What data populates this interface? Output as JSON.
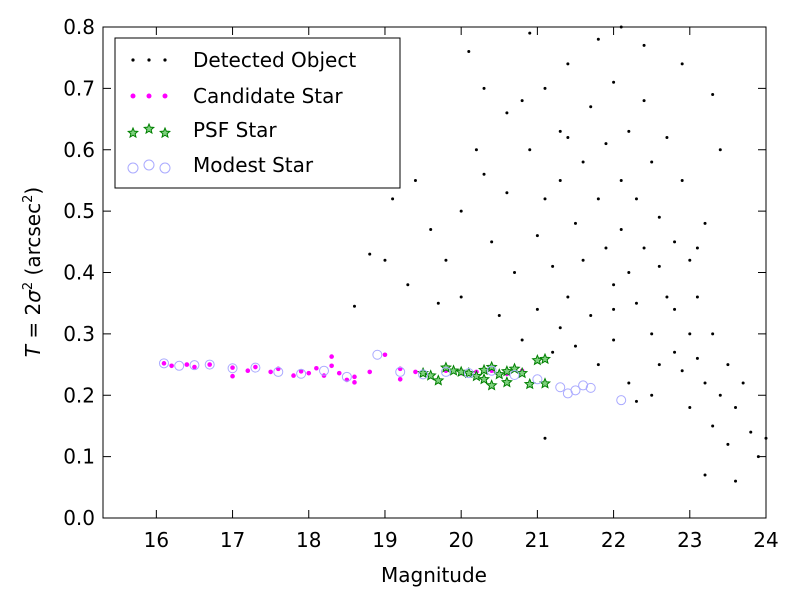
{
  "chart_data": {
    "type": "scatter",
    "xlabel": "Magnitude",
    "ylabel_parts": {
      "T": "T",
      "equals": " = 2",
      "sigma": "σ",
      "sup2": "2",
      "units": " (arcsec",
      "units_sup": "2",
      "close": ")"
    },
    "xlim": [
      15.3,
      24.0
    ],
    "ylim": [
      0.0,
      0.8
    ],
    "xticks": [
      16,
      17,
      18,
      19,
      20,
      21,
      22,
      23,
      24
    ],
    "yticks": [
      0.0,
      0.1,
      0.2,
      0.3,
      0.4,
      0.5,
      0.6,
      0.7,
      0.8
    ],
    "ytick_labels": [
      "0.0",
      "0.1",
      "0.2",
      "0.3",
      "0.4",
      "0.5",
      "0.6",
      "0.7",
      "0.8"
    ],
    "grid": false,
    "legend_position": "top-left",
    "series": [
      {
        "name": "Detected Object",
        "marker": "dot",
        "color": "#000000",
        "points": [
          [
            18.6,
            0.345
          ],
          [
            18.8,
            0.43
          ],
          [
            19.0,
            0.42
          ],
          [
            19.3,
            0.38
          ],
          [
            19.1,
            0.52
          ],
          [
            19.4,
            0.55
          ],
          [
            19.6,
            0.47
          ],
          [
            19.8,
            0.42
          ],
          [
            20.0,
            0.36
          ],
          [
            20.0,
            0.5
          ],
          [
            20.2,
            0.6
          ],
          [
            20.1,
            0.76
          ],
          [
            20.3,
            0.7
          ],
          [
            20.4,
            0.45
          ],
          [
            20.5,
            0.33
          ],
          [
            20.6,
            0.66
          ],
          [
            20.6,
            0.53
          ],
          [
            20.7,
            0.4
          ],
          [
            20.8,
            0.29
          ],
          [
            20.9,
            0.79
          ],
          [
            20.9,
            0.6
          ],
          [
            21.0,
            0.46
          ],
          [
            21.0,
            0.34
          ],
          [
            21.1,
            0.7
          ],
          [
            21.1,
            0.52
          ],
          [
            21.2,
            0.27
          ],
          [
            21.2,
            0.41
          ],
          [
            21.3,
            0.63
          ],
          [
            21.3,
            0.55
          ],
          [
            21.4,
            0.36
          ],
          [
            21.4,
            0.74
          ],
          [
            21.5,
            0.48
          ],
          [
            21.5,
            0.28
          ],
          [
            21.6,
            0.58
          ],
          [
            21.6,
            0.42
          ],
          [
            21.7,
            0.67
          ],
          [
            21.7,
            0.33
          ],
          [
            21.8,
            0.52
          ],
          [
            21.8,
            0.25
          ],
          [
            21.9,
            0.61
          ],
          [
            21.9,
            0.44
          ],
          [
            22.0,
            0.38
          ],
          [
            22.0,
            0.71
          ],
          [
            22.0,
            0.29
          ],
          [
            22.1,
            0.55
          ],
          [
            22.1,
            0.47
          ],
          [
            22.2,
            0.4
          ],
          [
            22.2,
            0.63
          ],
          [
            22.2,
            0.22
          ],
          [
            22.3,
            0.35
          ],
          [
            22.3,
            0.52
          ],
          [
            22.4,
            0.44
          ],
          [
            22.4,
            0.68
          ],
          [
            22.5,
            0.3
          ],
          [
            22.5,
            0.58
          ],
          [
            22.5,
            0.2
          ],
          [
            22.6,
            0.41
          ],
          [
            22.6,
            0.49
          ],
          [
            22.7,
            0.36
          ],
          [
            22.7,
            0.62
          ],
          [
            22.8,
            0.27
          ],
          [
            22.8,
            0.34
          ],
          [
            22.8,
            0.45
          ],
          [
            22.9,
            0.24
          ],
          [
            22.9,
            0.55
          ],
          [
            23.0,
            0.3
          ],
          [
            23.0,
            0.18
          ],
          [
            23.0,
            0.42
          ],
          [
            23.1,
            0.26
          ],
          [
            23.1,
            0.36
          ],
          [
            23.2,
            0.22
          ],
          [
            23.2,
            0.07
          ],
          [
            23.2,
            0.48
          ],
          [
            23.3,
            0.15
          ],
          [
            23.3,
            0.3
          ],
          [
            23.4,
            0.2
          ],
          [
            23.4,
            0.6
          ],
          [
            23.5,
            0.25
          ],
          [
            23.5,
            0.12
          ],
          [
            23.6,
            0.18
          ],
          [
            23.6,
            0.06
          ],
          [
            23.7,
            0.22
          ],
          [
            23.8,
            0.14
          ],
          [
            23.9,
            0.1
          ],
          [
            24.0,
            0.13
          ],
          [
            22.1,
            0.8
          ],
          [
            21.8,
            0.78
          ],
          [
            22.4,
            0.77
          ],
          [
            22.9,
            0.74
          ],
          [
            23.3,
            0.69
          ],
          [
            21.4,
            0.62
          ],
          [
            20.8,
            0.68
          ],
          [
            20.3,
            0.56
          ],
          [
            19.7,
            0.35
          ],
          [
            21.3,
            0.31
          ],
          [
            22.0,
            0.34
          ],
          [
            22.6,
            0.25
          ],
          [
            23.1,
            0.44
          ],
          [
            22.3,
            0.19
          ],
          [
            21.1,
            0.13
          ]
        ]
      },
      {
        "name": "Candidate Star",
        "marker": "circle",
        "color": "#ff00ff",
        "points": [
          [
            16.1,
            0.252
          ],
          [
            16.2,
            0.248
          ],
          [
            16.4,
            0.25
          ],
          [
            16.5,
            0.246
          ],
          [
            16.7,
            0.25
          ],
          [
            17.0,
            0.245
          ],
          [
            17.0,
            0.231
          ],
          [
            17.2,
            0.24
          ],
          [
            17.3,
            0.246
          ],
          [
            17.5,
            0.238
          ],
          [
            17.6,
            0.243
          ],
          [
            17.8,
            0.232
          ],
          [
            17.9,
            0.239
          ],
          [
            18.0,
            0.236
          ],
          [
            18.1,
            0.244
          ],
          [
            18.2,
            0.232
          ],
          [
            18.3,
            0.248
          ],
          [
            18.3,
            0.263
          ],
          [
            18.4,
            0.236
          ],
          [
            18.5,
            0.225
          ],
          [
            18.6,
            0.221
          ],
          [
            18.6,
            0.23
          ],
          [
            18.8,
            0.238
          ],
          [
            19.0,
            0.266
          ],
          [
            19.2,
            0.243
          ],
          [
            19.2,
            0.226
          ],
          [
            19.4,
            0.238
          ],
          [
            19.6,
            0.232
          ],
          [
            19.8,
            0.24
          ],
          [
            20.0,
            0.236
          ],
          [
            20.2,
            0.238
          ],
          [
            20.4,
            0.24
          ],
          [
            20.6,
            0.235
          ],
          [
            20.8,
            0.24
          ]
        ]
      },
      {
        "name": "PSF Star",
        "marker": "star",
        "color": "#008000",
        "points": [
          [
            19.5,
            0.236
          ],
          [
            19.6,
            0.232
          ],
          [
            19.7,
            0.224
          ],
          [
            19.8,
            0.245
          ],
          [
            19.9,
            0.24
          ],
          [
            20.0,
            0.238
          ],
          [
            20.1,
            0.236
          ],
          [
            20.2,
            0.231
          ],
          [
            20.3,
            0.241
          ],
          [
            20.3,
            0.226
          ],
          [
            20.4,
            0.246
          ],
          [
            20.4,
            0.216
          ],
          [
            20.5,
            0.234
          ],
          [
            20.6,
            0.239
          ],
          [
            20.6,
            0.221
          ],
          [
            20.7,
            0.243
          ],
          [
            20.8,
            0.236
          ],
          [
            20.9,
            0.218
          ],
          [
            21.0,
            0.257
          ],
          [
            21.1,
            0.259
          ],
          [
            21.1,
            0.219
          ]
        ]
      },
      {
        "name": "Modest Star",
        "marker": "open-circle",
        "color": "#aaaaff",
        "points": [
          [
            16.1,
            0.252
          ],
          [
            16.3,
            0.248
          ],
          [
            16.5,
            0.249
          ],
          [
            16.7,
            0.25
          ],
          [
            17.0,
            0.244
          ],
          [
            17.3,
            0.245
          ],
          [
            17.6,
            0.238
          ],
          [
            17.9,
            0.235
          ],
          [
            18.2,
            0.24
          ],
          [
            18.5,
            0.23
          ],
          [
            18.9,
            0.266
          ],
          [
            19.2,
            0.238
          ],
          [
            19.5,
            0.234
          ],
          [
            19.8,
            0.238
          ],
          [
            20.1,
            0.236
          ],
          [
            20.4,
            0.24
          ],
          [
            20.7,
            0.233
          ],
          [
            21.0,
            0.226
          ],
          [
            21.3,
            0.213
          ],
          [
            21.4,
            0.203
          ],
          [
            21.5,
            0.208
          ],
          [
            21.6,
            0.216
          ],
          [
            21.7,
            0.212
          ],
          [
            22.1,
            0.192
          ]
        ]
      }
    ]
  }
}
